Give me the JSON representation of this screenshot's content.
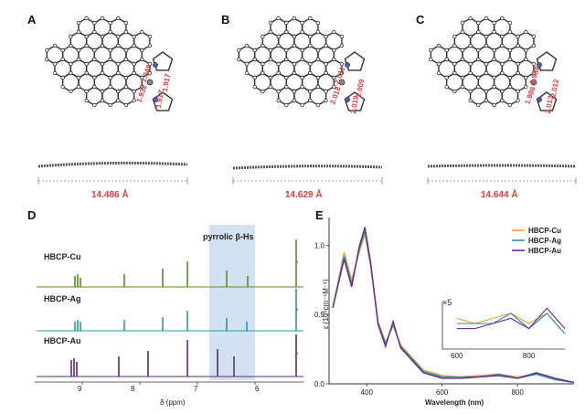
{
  "panels": {
    "A": {
      "letter": "A",
      "distance": "14.486 Å",
      "bonds": [
        "1.949",
        "1.917",
        "1.932",
        "1.917"
      ]
    },
    "B": {
      "letter": "B",
      "distance": "14.629 Å",
      "bonds": [
        "2.011",
        "2.009",
        "2.018",
        "2.019"
      ]
    },
    "C": {
      "letter": "C",
      "distance": "14.644 Å",
      "bonds": [
        "1.988",
        "2.012",
        "1.986",
        "2.013"
      ]
    },
    "D": {
      "letter": "D",
      "samples": [
        "HBCP-Cu",
        "HBCP-Ag",
        "HBCP-Au"
      ],
      "highlight_label": "pyrrolic β-Hs",
      "x_ticks": [
        "9",
        "8",
        "7",
        "6"
      ],
      "x_label": "δ (ppm)"
    },
    "E": {
      "letter": "E",
      "y_label": "ε (10⁵cm⁻¹M⁻¹)",
      "x_label": "Wavelength (nm)",
      "inset_label": "×5",
      "legend": [
        "HBCP-Cu",
        "HBCP-Ag",
        "HBCP-Au"
      ]
    }
  },
  "chart_data": {
    "type": "line",
    "title": "",
    "xlabel": "Wavelength (nm)",
    "ylabel": "ε (10⁵cm⁻¹M⁻¹)",
    "xlim": [
      300,
      950
    ],
    "ylim": [
      0,
      1.2
    ],
    "x_ticks": [
      400,
      600,
      800
    ],
    "y_ticks": [
      0.0,
      0.5,
      1.0
    ],
    "legend_position": "top-right",
    "colors": {
      "HBCP-Cu": "#f0a040",
      "HBCP-Ag": "#2a8fa0",
      "HBCP-Au": "#6a2a8a"
    },
    "series": [
      {
        "name": "HBCP-Cu",
        "x": [
          310,
          340,
          360,
          380,
          395,
          410,
          430,
          450,
          470,
          490,
          510,
          550,
          600,
          650,
          700,
          750,
          800,
          850,
          900,
          950
        ],
        "y": [
          0.55,
          0.95,
          0.75,
          0.95,
          1.08,
          0.85,
          0.45,
          0.3,
          0.42,
          0.28,
          0.22,
          0.1,
          0.06,
          0.05,
          0.06,
          0.07,
          0.05,
          0.07,
          0.03,
          0.01
        ]
      },
      {
        "name": "HBCP-Ag",
        "x": [
          310,
          340,
          360,
          380,
          395,
          410,
          430,
          450,
          470,
          490,
          510,
          550,
          600,
          650,
          700,
          750,
          800,
          850,
          900,
          950
        ],
        "y": [
          0.55,
          0.92,
          0.72,
          0.97,
          1.1,
          0.87,
          0.44,
          0.29,
          0.43,
          0.27,
          0.21,
          0.09,
          0.05,
          0.05,
          0.05,
          0.07,
          0.04,
          0.07,
          0.03,
          0.01
        ]
      },
      {
        "name": "HBCP-Au",
        "x": [
          310,
          340,
          360,
          380,
          395,
          410,
          430,
          450,
          470,
          490,
          510,
          550,
          600,
          650,
          700,
          750,
          800,
          850,
          900,
          950
        ],
        "y": [
          0.55,
          0.9,
          0.7,
          0.99,
          1.13,
          0.88,
          0.43,
          0.27,
          0.45,
          0.26,
          0.2,
          0.08,
          0.04,
          0.04,
          0.05,
          0.06,
          0.04,
          0.08,
          0.04,
          0.01
        ]
      }
    ]
  }
}
